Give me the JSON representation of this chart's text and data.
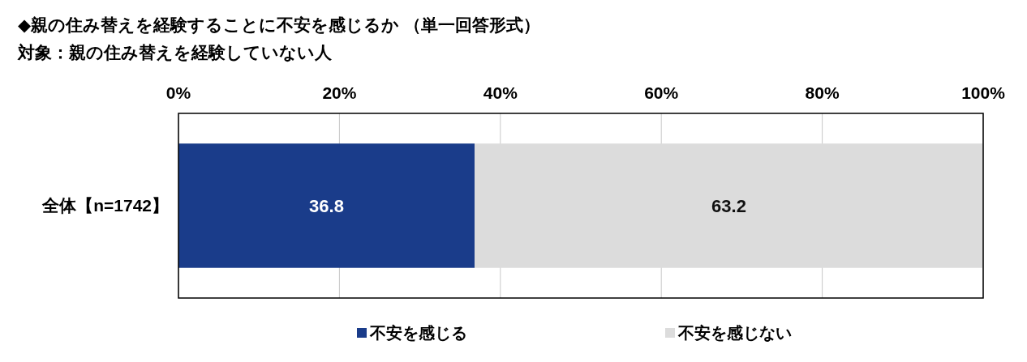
{
  "chart_data": {
    "type": "bar",
    "orientation": "horizontal",
    "stacked": true,
    "title": "◆親の住み替えを経験することに不安を感じるか （単一回答形式）",
    "subtitle": "対象：親の住み替えを経験していない人",
    "categories": [
      "全体【n=1742】"
    ],
    "series": [
      {
        "name": "不安を感じる",
        "color": "#1a3c8a",
        "values": [
          36.8
        ]
      },
      {
        "name": "不安を感じない",
        "color": "#dcdcdc",
        "values": [
          63.2
        ]
      }
    ],
    "xlim": [
      0,
      100
    ],
    "xticks": [
      {
        "value": 0,
        "label": "0%"
      },
      {
        "value": 20,
        "label": "20%"
      },
      {
        "value": 40,
        "label": "40%"
      },
      {
        "value": 60,
        "label": "60%"
      },
      {
        "value": 80,
        "label": "80%"
      },
      {
        "value": 100,
        "label": "100%"
      }
    ],
    "grid": "x",
    "legend": "bottom",
    "data_labels": true
  }
}
